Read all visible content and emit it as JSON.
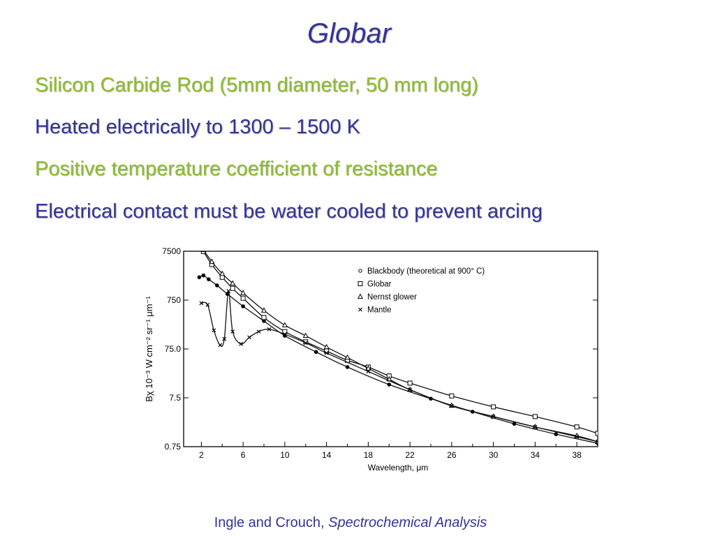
{
  "title": "Globar",
  "bullets": [
    "Silicon Carbide Rod (5mm diameter, 50 mm long)",
    "Heated electrically to 1300 – 1500 K",
    "Positive temperature coefficient of resistance",
    "Electrical contact must be water cooled to prevent arcing"
  ],
  "colors": {
    "title": "#33339a",
    "green_text": "#8cbf26",
    "blue_text": "#33339a"
  },
  "citation": {
    "authors": "Ingle and Crouch,",
    "work": "Spectrochemical Analysis"
  },
  "chart_data": {
    "type": "line",
    "xlabel": "Wavelength, μm",
    "ylabel": "Bχ 10⁻³ W cm⁻² sr⁻¹ μm⁻¹",
    "x_ticks": [
      2,
      6,
      10,
      14,
      18,
      22,
      26,
      30,
      34,
      38
    ],
    "y_ticks": [
      "0.75",
      "7.5",
      "75.0",
      "750",
      "7500"
    ],
    "y_tick_values": [
      0.75,
      7.5,
      75,
      750,
      7500
    ],
    "xlim": [
      0.3,
      40
    ],
    "ylim": [
      0.75,
      7500
    ],
    "y_scale": "log",
    "legend_placement": "top-right",
    "series": [
      {
        "name": "Blackbody (theoretical at 900° C)",
        "marker": "circle",
        "x": [
          1.8,
          2.2,
          2.7,
          3.5,
          4.5,
          6,
          8,
          10,
          13,
          16,
          20,
          24,
          28,
          32,
          36,
          40
        ],
        "y": [
          2200,
          2400,
          2000,
          1500,
          1000,
          560,
          280,
          140,
          65,
          32,
          14,
          7.2,
          3.9,
          2.2,
          1.35,
          0.88
        ]
      },
      {
        "name": "Globar",
        "marker": "square",
        "x": [
          2.2,
          3,
          4,
          5,
          6,
          8,
          10,
          12,
          14,
          16,
          18,
          20,
          22,
          26,
          30,
          34,
          38,
          40
        ],
        "y": [
          7400,
          4000,
          2200,
          1300,
          820,
          330,
          170,
          105,
          68,
          44,
          32,
          21,
          15,
          8.2,
          4.9,
          3.1,
          1.9,
          1.4
        ]
      },
      {
        "name": "Nernst glower",
        "marker": "triangle",
        "x": [
          2.2,
          3,
          4,
          5,
          6,
          8,
          10,
          12,
          14,
          16,
          18,
          20,
          22,
          26,
          30,
          34,
          38,
          40
        ],
        "y": [
          8000,
          4600,
          2600,
          1650,
          1050,
          460,
          230,
          140,
          82,
          50,
          30,
          18,
          11,
          5.2,
          3.1,
          1.9,
          1.25,
          0.95
        ]
      },
      {
        "name": "Mantle",
        "marker": "x",
        "x": [
          2,
          2.6,
          3.2,
          3.8,
          4.2,
          4.6,
          5,
          5.8,
          6.6,
          7.5,
          8.5,
          10,
          12,
          14,
          18,
          22,
          26,
          30,
          34,
          38,
          40
        ],
        "y": [
          650,
          600,
          180,
          90,
          120,
          1150,
          170,
          95,
          130,
          170,
          190,
          150,
          100,
          62,
          26,
          11,
          5.1,
          3.1,
          1.9,
          1.2,
          0.95
        ]
      }
    ]
  }
}
